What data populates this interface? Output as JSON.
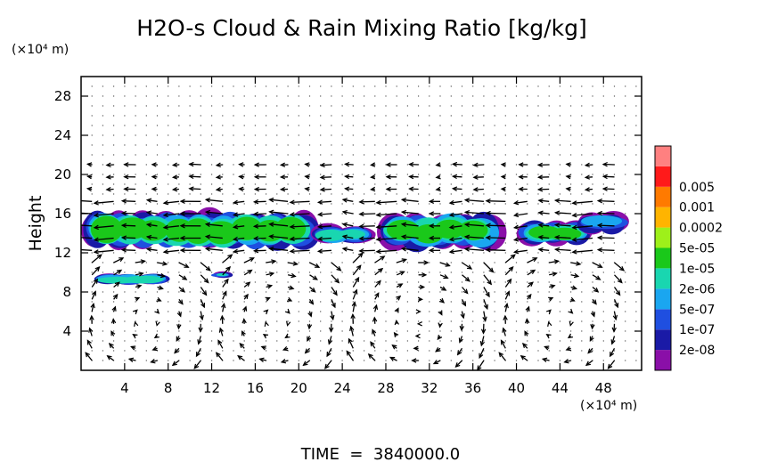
{
  "chart_data": {
    "type": "heatmap",
    "title": "H2O-s Cloud & Rain Mixing Ratio [kg/kg]",
    "ylabel": "Height",
    "y_unit_label": "(×10⁴ m)",
    "x_unit_label": "(×10⁴ m)",
    "footer": "TIME  =  3840000.0",
    "xlim": [
      0,
      51.5
    ],
    "ylim": [
      0,
      30
    ],
    "x_ticks": [
      4,
      8,
      12,
      16,
      20,
      24,
      28,
      32,
      36,
      40,
      44,
      48
    ],
    "x_tick_labels": [
      "4",
      "8",
      "12",
      "16",
      "20",
      "24",
      "28",
      "32",
      "36",
      "40",
      "44",
      "48"
    ],
    "y_ticks": [
      4,
      8,
      12,
      16,
      20,
      24,
      28
    ],
    "y_tick_labels": [
      "4",
      "8",
      "12",
      "16",
      "20",
      "24",
      "28"
    ],
    "colorbar": {
      "levels": [
        "2e-08",
        "1e-07",
        "5e-07",
        "2e-06",
        "1e-05",
        "5e-05",
        "0.0002",
        "0.001",
        "0.005"
      ],
      "colors": [
        "#8a0fa8",
        "#1a1aa6",
        "#1f4fe0",
        "#1aa6f0",
        "#19d6b0",
        "#1ac81a",
        "#9ef01a",
        "#ffb400",
        "#ff7a00",
        "#ff1a1a",
        "#ff8080"
      ]
    },
    "cloud_regions": [
      {
        "x": [
          0.3,
          21.5
        ],
        "y": [
          12.3,
          16.3
        ],
        "level": "1e-05"
      },
      {
        "x": [
          21.5,
          26.5
        ],
        "y": [
          12.8,
          14.9
        ],
        "level": "2e-06"
      },
      {
        "x": [
          27.5,
          38.5
        ],
        "y": [
          12.2,
          16.2
        ],
        "level": "1e-05"
      },
      {
        "x": [
          40.5,
          46.5
        ],
        "y": [
          12.7,
          15.4
        ],
        "level": "1e-05"
      },
      {
        "x": [
          46.0,
          50.0
        ],
        "y": [
          13.8,
          16.3
        ],
        "level": "5e-07"
      },
      {
        "x": [
          1.5,
          7.5
        ],
        "y": [
          8.7,
          9.9
        ],
        "level": "2e-06"
      },
      {
        "x": [
          12.5,
          13.5
        ],
        "y": [
          9.4,
          10.1
        ],
        "level": "2e-06"
      }
    ]
  }
}
